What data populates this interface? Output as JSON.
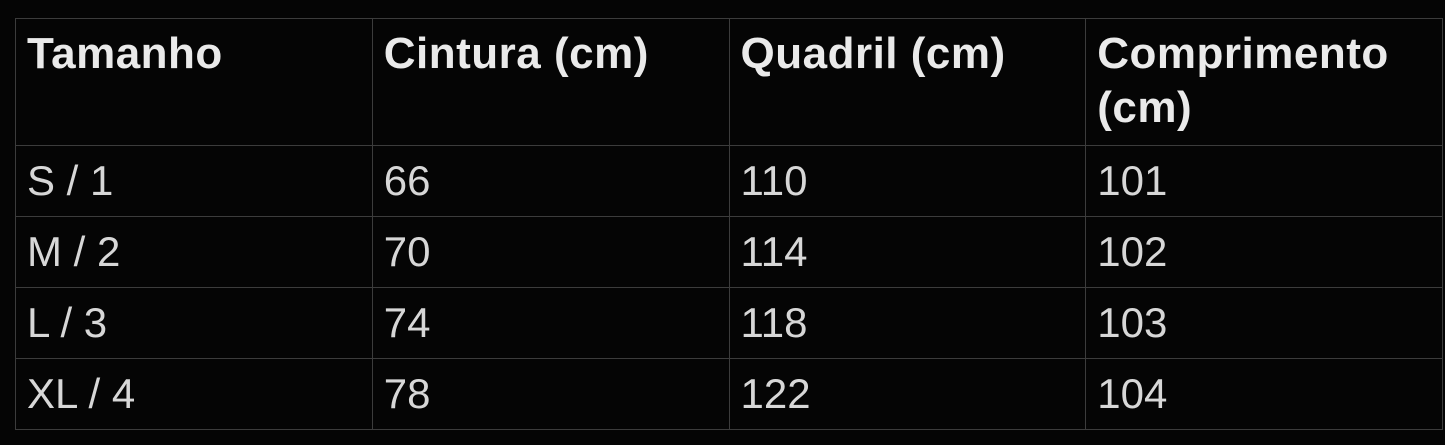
{
  "colors": {
    "background": "#050505",
    "border": "#3c3c3c",
    "header_text": "#eaeaea",
    "body_text": "#d7d7d7"
  },
  "chart_data": {
    "type": "table",
    "title": "",
    "columns": [
      "Tamanho",
      "Cintura (cm)",
      "Quadril (cm)",
      "Comprimento (cm)"
    ],
    "rows": [
      [
        "S / 1",
        "66",
        "110",
        "101"
      ],
      [
        "M / 2",
        "70",
        "114",
        "102"
      ],
      [
        "L / 3",
        "74",
        "118",
        "103"
      ],
      [
        "XL / 4",
        "78",
        "122",
        "104"
      ]
    ]
  }
}
